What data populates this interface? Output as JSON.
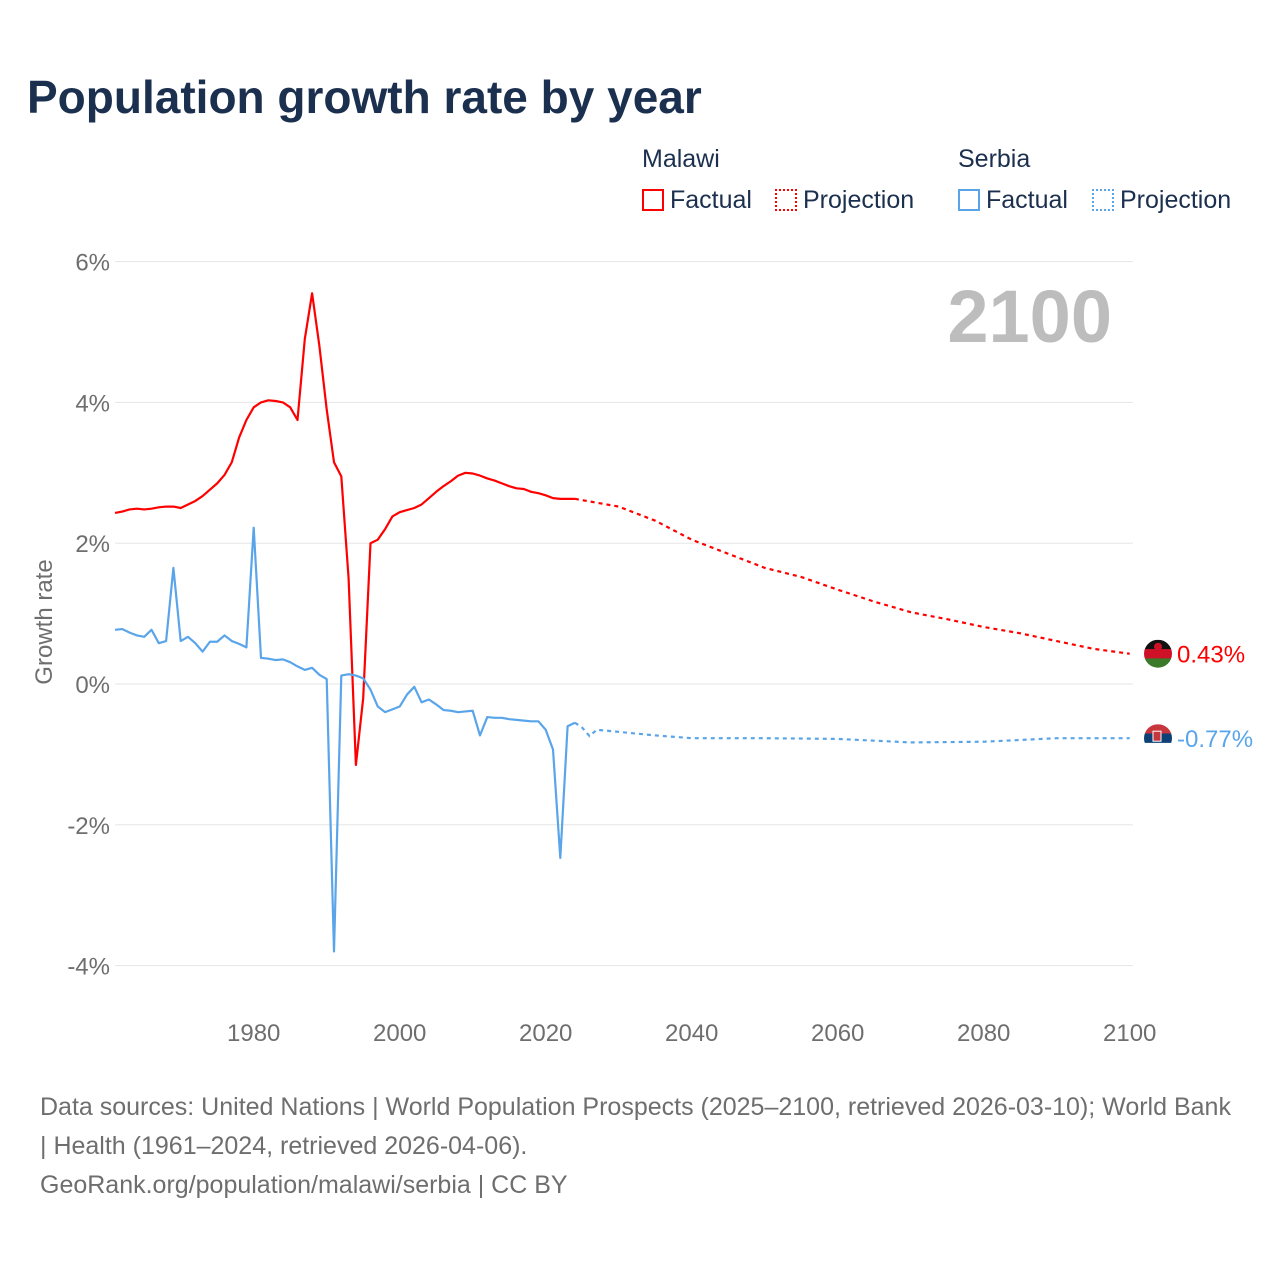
{
  "title": "Population growth rate by year",
  "legend": {
    "groups": [
      {
        "name": "Malawi",
        "factual": "Factual",
        "projection": "Projection"
      },
      {
        "name": "Serbia",
        "factual": "Factual",
        "projection": "Projection"
      }
    ]
  },
  "year_label": "2100",
  "footer": {
    "sources": "Data sources: United Nations | World Population Prospects (2025–2100, retrieved 2026-03-10); World Bank | Health (1961–2024, retrieved 2026-04-06).",
    "credit": "GeoRank.org/population/malawi/serbia | CC BY"
  },
  "chart_data": {
    "type": "line",
    "title": "Population growth rate by year",
    "xlabel": "",
    "ylabel": "Growth rate",
    "xlim": [
      1961,
      2100
    ],
    "ylim": [
      -4.6,
      6.2
    ],
    "xticks": [
      1980,
      2000,
      2020,
      2040,
      2060,
      2080,
      2100
    ],
    "yticks": [
      {
        "v": 6,
        "label": "6%"
      },
      {
        "v": 4,
        "label": "4%"
      },
      {
        "v": 2,
        "label": "2%"
      },
      {
        "v": 0,
        "label": "0%"
      },
      {
        "v": -2,
        "label": "-2%"
      },
      {
        "v": -4,
        "label": "-4%"
      }
    ],
    "grid": true,
    "series": [
      {
        "name": "Malawi",
        "color": "#ff0000",
        "end_label": "0.43%",
        "factual": {
          "start": 1961,
          "values": [
            2.43,
            2.45,
            2.48,
            2.49,
            2.48,
            2.49,
            2.51,
            2.52,
            2.52,
            2.5,
            2.55,
            2.6,
            2.67,
            2.76,
            2.85,
            2.97,
            3.15,
            3.5,
            3.75,
            3.93,
            4.0,
            4.03,
            4.02,
            4.0,
            3.93,
            3.75,
            4.9,
            5.55,
            4.8,
            3.9,
            3.15,
            2.95,
            1.5,
            -1.15,
            -0.2,
            2.0,
            2.05,
            2.2,
            2.38,
            2.44,
            2.47,
            2.5,
            2.55,
            2.64,
            2.73,
            2.81,
            2.88,
            2.96,
            3.0,
            2.99,
            2.96,
            2.92,
            2.89,
            2.85,
            2.81,
            2.78,
            2.77,
            2.73,
            2.71,
            2.68,
            2.64,
            2.63,
            2.63,
            2.63
          ]
        },
        "projection": {
          "x": [
            2024,
            2030,
            2035,
            2040,
            2045,
            2050,
            2055,
            2060,
            2065,
            2070,
            2075,
            2080,
            2085,
            2090,
            2095,
            2100
          ],
          "values": [
            2.63,
            2.52,
            2.32,
            2.05,
            1.85,
            1.65,
            1.52,
            1.34,
            1.17,
            1.02,
            0.92,
            0.81,
            0.72,
            0.61,
            0.5,
            0.43
          ]
        }
      },
      {
        "name": "Serbia",
        "color": "#5aa5ea",
        "end_label": "-0.77%",
        "factual": {
          "start": 1961,
          "values": [
            0.77,
            0.78,
            0.73,
            0.69,
            0.67,
            0.77,
            0.58,
            0.61,
            1.65,
            0.61,
            0.67,
            0.58,
            0.46,
            0.6,
            0.6,
            0.69,
            0.61,
            0.57,
            0.52,
            2.22,
            0.37,
            0.36,
            0.34,
            0.35,
            0.31,
            0.25,
            0.2,
            0.23,
            0.13,
            0.07,
            -3.8,
            0.12,
            0.14,
            0.12,
            0.08,
            -0.08,
            -0.32,
            -0.4,
            -0.36,
            -0.32,
            -0.15,
            -0.04,
            -0.26,
            -0.22,
            -0.29,
            -0.37,
            -0.38,
            -0.4,
            -0.39,
            -0.38,
            -0.73,
            -0.47,
            -0.48,
            -0.48,
            -0.5,
            -0.51,
            -0.52,
            -0.53,
            -0.53,
            -0.65,
            -0.93,
            -2.47,
            -0.6,
            -0.55
          ]
        },
        "projection": {
          "x": [
            2024,
            2025,
            2026,
            2027,
            2030,
            2035,
            2040,
            2050,
            2060,
            2070,
            2080,
            2090,
            2100
          ],
          "values": [
            -0.55,
            -0.62,
            -0.74,
            -0.65,
            -0.68,
            -0.73,
            -0.77,
            -0.77,
            -0.78,
            -0.83,
            -0.82,
            -0.77,
            -0.77
          ]
        }
      }
    ]
  }
}
